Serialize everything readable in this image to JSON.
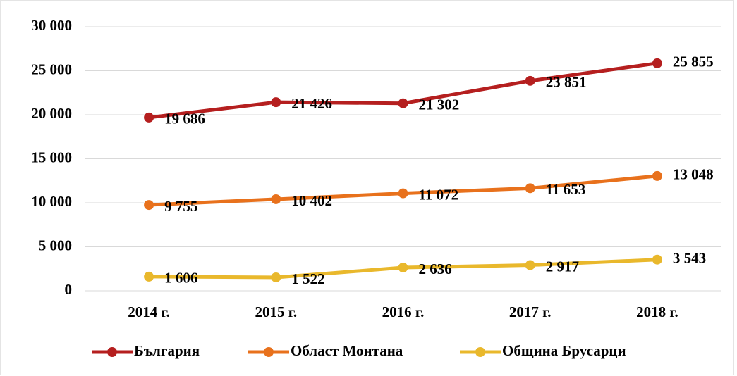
{
  "chart_data": {
    "type": "line",
    "categories": [
      "2014 г.",
      "2015 г.",
      "2016 г.",
      "2017 г.",
      "2018 г."
    ],
    "series": [
      {
        "name": "България",
        "color": "#b51f1f",
        "values": [
          19686,
          21426,
          21302,
          23851,
          25855
        ],
        "value_labels": [
          "19 686",
          "21 426",
          "21 302",
          "23 851",
          "25 855"
        ]
      },
      {
        "name": "Област Монтана",
        "color": "#e8711c",
        "values": [
          9755,
          10402,
          11072,
          11653,
          13048
        ],
        "value_labels": [
          "9 755",
          "10 402",
          "11 072",
          "11 653",
          "13 048"
        ]
      },
      {
        "name": "Община Брусарци",
        "color": "#e9b82c",
        "values": [
          1606,
          1522,
          2636,
          2917,
          3543
        ],
        "value_labels": [
          "1 606",
          "1 522",
          "2 636",
          "2 917",
          "3 543"
        ]
      }
    ],
    "ylim": [
      0,
      30000
    ],
    "yticks": [
      {
        "value": 0,
        "label": "0"
      },
      {
        "value": 5000,
        "label": "5 000"
      },
      {
        "value": 10000,
        "label": "10 000"
      },
      {
        "value": 15000,
        "label": "15 000"
      },
      {
        "value": 20000,
        "label": "20 000"
      },
      {
        "value": 25000,
        "label": "25 000"
      },
      {
        "value": 30000,
        "label": "30 000"
      }
    ],
    "grid": true,
    "legend": "bottom"
  }
}
